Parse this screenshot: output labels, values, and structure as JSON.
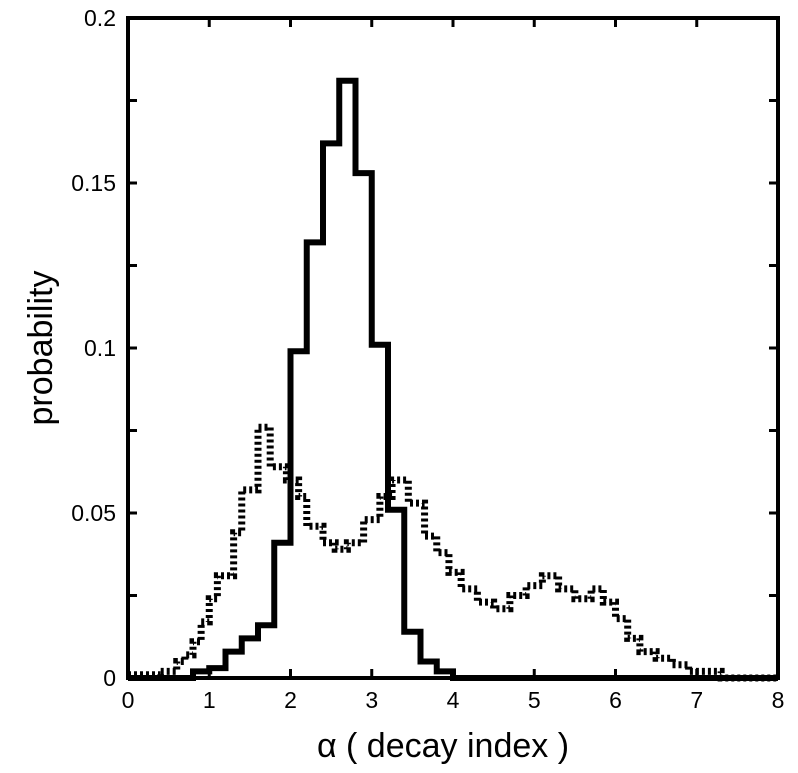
{
  "chart_data": {
    "type": "histogram-step",
    "xlabel": "α ( decay index )",
    "ylabel": "probability",
    "xlim": [
      0,
      8
    ],
    "ylim": [
      0,
      0.2
    ],
    "xticks": [
      0,
      1,
      2,
      3,
      4,
      5,
      6,
      7,
      8
    ],
    "xtick_labels": [
      "0",
      "1",
      "2",
      "3",
      "4",
      "5",
      "6",
      "7",
      "8"
    ],
    "yticks": [
      0,
      0.05,
      0.1,
      0.15,
      0.2
    ],
    "ytick_labels": [
      "0",
      "0.05",
      "0.1",
      "0.15",
      "0.2"
    ],
    "grid": false,
    "series": [
      {
        "style": "solid",
        "color": "#000000",
        "steps": [
          [
            0.0,
            0.0
          ],
          [
            0.7,
            0.0
          ],
          [
            0.8,
            0.002
          ],
          [
            1.0,
            0.003
          ],
          [
            1.2,
            0.008
          ],
          [
            1.4,
            0.012
          ],
          [
            1.6,
            0.016
          ],
          [
            1.8,
            0.041
          ],
          [
            2.0,
            0.099
          ],
          [
            2.2,
            0.132
          ],
          [
            2.4,
            0.162
          ],
          [
            2.6,
            0.181
          ],
          [
            2.8,
            0.153
          ],
          [
            3.0,
            0.101
          ],
          [
            3.2,
            0.051
          ],
          [
            3.4,
            0.014
          ],
          [
            3.6,
            0.005
          ],
          [
            3.8,
            0.002
          ],
          [
            4.0,
            0.0
          ],
          [
            8.0,
            0.0
          ]
        ]
      },
      {
        "style": "dotted",
        "color": "#000000",
        "steps": [
          [
            0.0,
            0.001
          ],
          [
            0.4,
            0.002
          ],
          [
            0.6,
            0.005
          ],
          [
            0.7,
            0.007
          ],
          [
            0.8,
            0.011
          ],
          [
            0.9,
            0.017
          ],
          [
            1.0,
            0.024
          ],
          [
            1.1,
            0.031
          ],
          [
            1.3,
            0.044
          ],
          [
            1.4,
            0.057
          ],
          [
            1.6,
            0.076
          ],
          [
            1.75,
            0.064
          ],
          [
            1.95,
            0.06
          ],
          [
            2.1,
            0.055
          ],
          [
            2.2,
            0.046
          ],
          [
            2.4,
            0.041
          ],
          [
            2.55,
            0.039
          ],
          [
            2.7,
            0.041
          ],
          [
            2.9,
            0.048
          ],
          [
            3.1,
            0.055
          ],
          [
            3.25,
            0.06
          ],
          [
            3.45,
            0.053
          ],
          [
            3.65,
            0.043
          ],
          [
            3.8,
            0.038
          ],
          [
            3.95,
            0.032
          ],
          [
            4.1,
            0.027
          ],
          [
            4.3,
            0.023
          ],
          [
            4.5,
            0.021
          ],
          [
            4.7,
            0.025
          ],
          [
            4.9,
            0.028
          ],
          [
            5.1,
            0.031
          ],
          [
            5.3,
            0.027
          ],
          [
            5.5,
            0.024
          ],
          [
            5.7,
            0.027
          ],
          [
            5.85,
            0.023
          ],
          [
            6.0,
            0.018
          ],
          [
            6.15,
            0.012
          ],
          [
            6.3,
            0.008
          ],
          [
            6.5,
            0.006
          ],
          [
            6.7,
            0.004
          ],
          [
            6.9,
            0.002
          ],
          [
            7.3,
            0.0
          ],
          [
            8.0,
            0.0
          ]
        ]
      }
    ]
  }
}
